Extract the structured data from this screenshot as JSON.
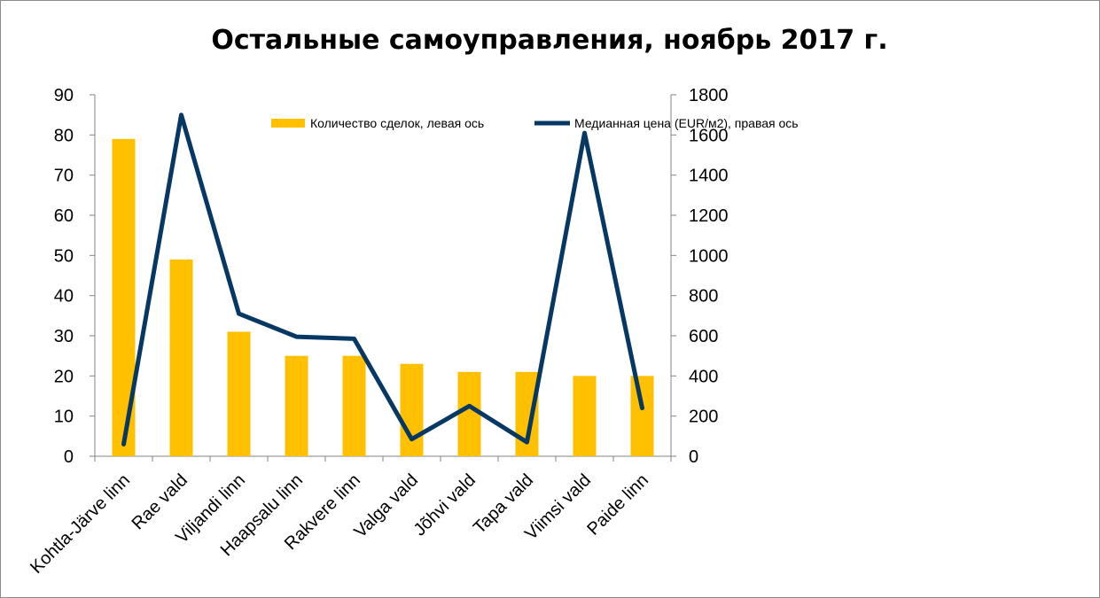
{
  "chart_data": {
    "type": "bar",
    "title": "Остальные самоуправления, ноябрь 2017 г.",
    "categories": [
      "Kohtla-Järve linn",
      "Rae vald",
      "Viljandi linn",
      "Haapsalu linn",
      "Rakvere linn",
      "Valga vald",
      "Jõhvi vald",
      "Tapa vald",
      "Viimsi vald",
      "Paide linn"
    ],
    "series": [
      {
        "name": "Количество сделок, левая ось",
        "type": "bar",
        "axis": "left",
        "color": "#FFC000",
        "values": [
          79,
          49,
          31,
          25,
          25,
          23,
          21,
          21,
          20,
          20
        ]
      },
      {
        "name": "Медианная цена (EUR/м2), правая ось",
        "type": "line",
        "axis": "right",
        "color": "#073763",
        "values": [
          60,
          1700,
          710,
          595,
          585,
          85,
          250,
          70,
          1610,
          240
        ]
      }
    ],
    "y_left": {
      "ylim": [
        0,
        90
      ],
      "ticks": [
        "0",
        "10",
        "20",
        "30",
        "40",
        "50",
        "60",
        "70",
        "80",
        "90"
      ]
    },
    "y_right": {
      "ylim": [
        0,
        1800
      ],
      "ticks": [
        "0",
        "200",
        "400",
        "600",
        "800",
        "1000",
        "1200",
        "1400",
        "1600",
        "1800"
      ]
    },
    "grid": false,
    "legend_position": "top"
  }
}
